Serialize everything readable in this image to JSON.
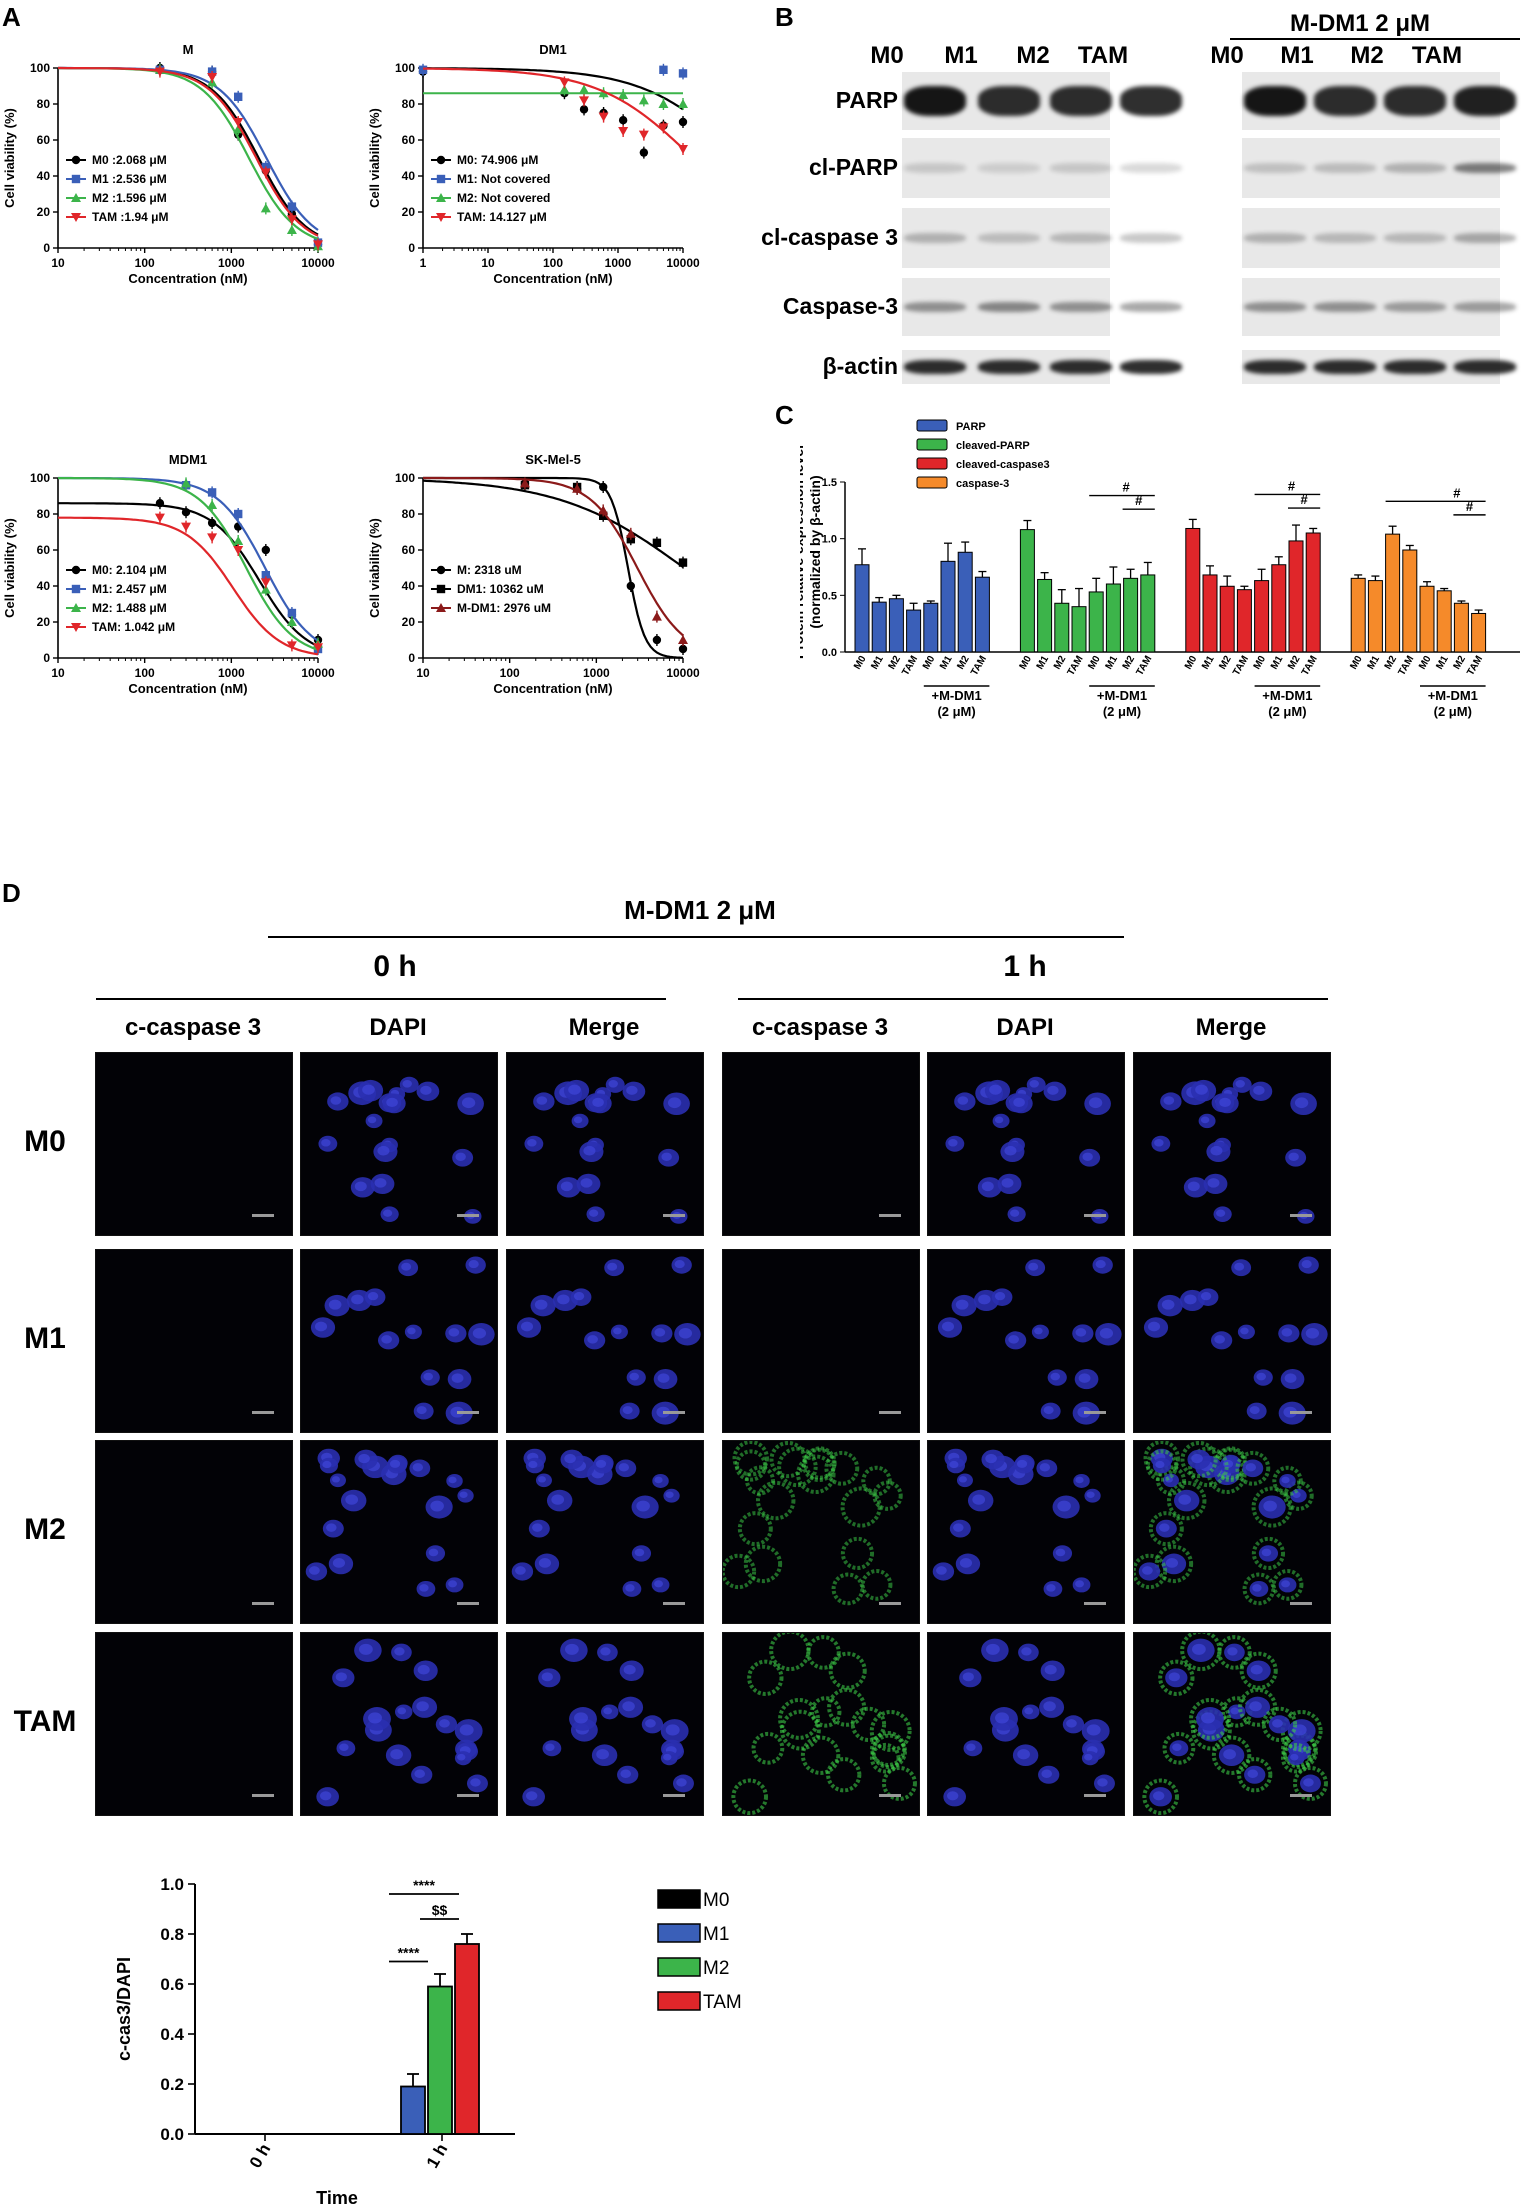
{
  "panel_labels": {
    "a": "A",
    "b": "B",
    "c": "C",
    "d": "D"
  },
  "chart_data": [
    {
      "id": "a1",
      "type": "line",
      "title": "M",
      "xlabel": "Concentration (nM)",
      "ylabel": "Cell viability (%)",
      "x_scale": "log",
      "xlim": [
        10,
        10000
      ],
      "ylim": [
        0,
        100
      ],
      "xticks": [
        "10",
        "100",
        "1000",
        "10000"
      ],
      "yticks": [
        "0",
        "20",
        "40",
        "60",
        "80",
        "100"
      ],
      "legend_position": "bottom-left",
      "series": [
        {
          "name": "M0 :2.068 μM",
          "color": "#000000",
          "marker": "circle",
          "ec50": 2068,
          "x": [
            150,
            600,
            1200,
            2500,
            5000,
            10000
          ],
          "y": [
            100,
            98,
            63,
            43,
            19,
            2
          ]
        },
        {
          "name": "M1 :2.536  μM",
          "color": "#3a5fb8",
          "marker": "square",
          "ec50": 2536,
          "x": [
            150,
            600,
            1200,
            2500,
            5000,
            10000
          ],
          "y": [
            99,
            98,
            84,
            45,
            23,
            3
          ]
        },
        {
          "name": "M2 :1.596  μM",
          "color": "#3cb44a",
          "marker": "triangle",
          "ec50": 1596,
          "x": [
            150,
            600,
            1200,
            2500,
            5000,
            10000
          ],
          "y": [
            99,
            92,
            66,
            22,
            10,
            1
          ]
        },
        {
          "name": "TAM  :1.94  μM",
          "color": "#e0262a",
          "marker": "triangle-down",
          "ec50": 1940,
          "x": [
            150,
            600,
            1200,
            2500,
            5000,
            10000
          ],
          "y": [
            98,
            95,
            70,
            42,
            16,
            2
          ]
        }
      ]
    },
    {
      "id": "a2",
      "type": "line",
      "title": "DM1",
      "xlabel": "Concentration (nM)",
      "ylabel": "Cell viability (%)",
      "x_scale": "log",
      "xlim": [
        1,
        10000
      ],
      "ylim": [
        0,
        100
      ],
      "xticks": [
        "1",
        "10",
        "100",
        "1000",
        "10000"
      ],
      "yticks": [
        "0",
        "20",
        "40",
        "60",
        "80",
        "100"
      ],
      "legend_position": "bottom-left",
      "series": [
        {
          "name": "M0: 74.906 μM",
          "color": "#000000",
          "marker": "circle",
          "ec50": 74906,
          "x": [
            1,
            150,
            300,
            600,
            1200,
            2500,
            5000,
            10000
          ],
          "y": [
            98,
            86,
            77,
            75,
            71,
            53,
            68,
            70
          ]
        },
        {
          "name": "M1: Not covered",
          "color": "#3a5fb8",
          "marker": "square",
          "ec50": null,
          "x": [
            1,
            5000,
            10000
          ],
          "y": [
            99,
            99,
            97
          ]
        },
        {
          "name": "M2: Not covered",
          "color": "#3cb44a",
          "marker": "triangle",
          "ec50": null,
          "x": [
            150,
            300,
            600,
            1200,
            2500,
            5000,
            10000
          ],
          "y": [
            88,
            88,
            86,
            85,
            82,
            80,
            80
          ]
        },
        {
          "name": "TAM: 14.127 μM",
          "color": "#e0262a",
          "marker": "triangle-down",
          "ec50": 14127,
          "x": [
            150,
            300,
            600,
            1200,
            2500,
            5000,
            10000
          ],
          "y": [
            92,
            82,
            73,
            65,
            63,
            67,
            55
          ]
        }
      ]
    },
    {
      "id": "a3",
      "type": "line",
      "title": "MDM1",
      "xlabel": "Concentration (nM)",
      "ylabel": "Cell viability (%)",
      "x_scale": "log",
      "xlim": [
        10,
        10000
      ],
      "ylim": [
        0,
        100
      ],
      "xticks": [
        "10",
        "100",
        "1000",
        "10000"
      ],
      "yticks": [
        "0",
        "20",
        "40",
        "60",
        "80",
        "100"
      ],
      "legend_position": "bottom-left",
      "series": [
        {
          "name": "M0: 2.104 μM",
          "color": "#000000",
          "marker": "circle",
          "ec50": 2104,
          "x": [
            150,
            300,
            600,
            1200,
            2500,
            5000,
            10000
          ],
          "y": [
            86,
            81,
            75,
            73,
            60,
            24,
            10
          ]
        },
        {
          "name": "M1: 2.457 μM",
          "color": "#3a5fb8",
          "marker": "square",
          "ec50": 2457,
          "x": [
            300,
            600,
            1200,
            2500,
            5000,
            10000
          ],
          "y": [
            96,
            92,
            80,
            46,
            25,
            5
          ]
        },
        {
          "name": "M2: 1.488 μM",
          "color": "#3cb44a",
          "marker": "triangle",
          "ec50": 1488,
          "x": [
            300,
            600,
            1200,
            2500,
            5000,
            10000
          ],
          "y": [
            97,
            85,
            65,
            38,
            20,
            8
          ]
        },
        {
          "name": "TAM: 1.042 μM",
          "color": "#e0262a",
          "marker": "triangle-down",
          "ec50": 1042,
          "x": [
            150,
            300,
            600,
            1200,
            2500,
            5000,
            10000
          ],
          "y": [
            78,
            73,
            67,
            60,
            42,
            7,
            6
          ]
        }
      ]
    },
    {
      "id": "a4",
      "type": "line",
      "title": "SK-Mel-5",
      "xlabel": "Concentration (nM)",
      "ylabel": "Cell viability (%)",
      "x_scale": "log",
      "xlim": [
        10,
        10000
      ],
      "ylim": [
        0,
        100
      ],
      "xticks": [
        "10",
        "100",
        "1000",
        "10000"
      ],
      "yticks": [
        "0",
        "20",
        "40",
        "60",
        "80",
        "100"
      ],
      "legend_position": "bottom-left",
      "series": [
        {
          "name": "M: 2318 uM",
          "color": "#000000",
          "marker": "circle",
          "ec50": 2318,
          "x": [
            150,
            600,
            1200,
            2500,
            5000,
            10000
          ],
          "y": [
            97,
            94,
            95,
            40,
            10,
            5
          ]
        },
        {
          "name": "DM1: 10362 uM",
          "color": "#000000",
          "marker": "square",
          "ec50": 10362,
          "x": [
            150,
            600,
            1200,
            2500,
            5000,
            10000
          ],
          "y": [
            96,
            95,
            79,
            66,
            64,
            53
          ]
        },
        {
          "name": "M-DM1: 2976 uM",
          "color": "#8b1a1a",
          "marker": "triangle",
          "ec50": 2976,
          "x": [
            150,
            600,
            1200,
            2500,
            5000,
            10000
          ],
          "y": [
            97,
            94,
            82,
            69,
            23,
            10
          ]
        }
      ]
    },
    {
      "id": "c",
      "type": "bar",
      "ylabel": "Protein relative expression level (normalized by β-actin)",
      "ylim": [
        0,
        1.5
      ],
      "yticks": [
        "0.0",
        "0.5",
        "1.0",
        "1.5"
      ],
      "categories": [
        "M0",
        "M1",
        "M2",
        "TAM",
        "M0",
        "M1",
        "M2",
        "TAM"
      ],
      "group_label": "+M-DM1 (2 μM)",
      "significance": "#",
      "legend_position": "top-left",
      "series": [
        {
          "name": "PARP",
          "color": "#3a5fb8",
          "values": [
            0.77,
            0.44,
            0.47,
            0.37,
            0.43,
            0.8,
            0.88,
            0.66
          ],
          "errors": [
            0.14,
            0.04,
            0.03,
            0.06,
            0.02,
            0.16,
            0.09,
            0.05
          ]
        },
        {
          "name": "cleaved-PARP",
          "color": "#3cb44a",
          "values": [
            1.08,
            0.64,
            0.43,
            0.4,
            0.53,
            0.6,
            0.65,
            0.68
          ],
          "errors": [
            0.08,
            0.06,
            0.12,
            0.16,
            0.12,
            0.15,
            0.08,
            0.11
          ]
        },
        {
          "name": "cleaved-caspase3",
          "color": "#e0262a",
          "values": [
            1.09,
            0.68,
            0.58,
            0.55,
            0.63,
            0.77,
            0.98,
            1.05
          ],
          "errors": [
            0.08,
            0.08,
            0.09,
            0.03,
            0.1,
            0.07,
            0.14,
            0.04
          ]
        },
        {
          "name": "caspase-3",
          "color": "#f58a2a",
          "values": [
            0.65,
            0.63,
            1.04,
            0.9,
            0.58,
            0.54,
            0.43,
            0.34
          ],
          "errors": [
            0.03,
            0.04,
            0.07,
            0.04,
            0.04,
            0.02,
            0.02,
            0.03
          ]
        }
      ]
    },
    {
      "id": "d",
      "type": "bar",
      "xlabel": "Time",
      "ylabel": "c-cas3/DAPI",
      "ylim": [
        0,
        1.0
      ],
      "yticks": [
        "0.0",
        "0.2",
        "0.4",
        "0.6",
        "0.8",
        "1.0"
      ],
      "categories": [
        "0 h",
        "1 h"
      ],
      "legend_position": "right",
      "series": [
        {
          "name": "M0",
          "color": "#000000",
          "values": [
            0,
            0
          ],
          "errors": [
            0,
            0
          ]
        },
        {
          "name": "M1",
          "color": "#3a5fb8",
          "values": [
            0,
            0.19
          ],
          "errors": [
            0,
            0.05
          ]
        },
        {
          "name": "M2",
          "color": "#3cb44a",
          "values": [
            0,
            0.59
          ],
          "errors": [
            0,
            0.05
          ]
        },
        {
          "name": "TAM",
          "color": "#e0262a",
          "values": [
            0,
            0.76
          ],
          "errors": [
            0,
            0.04
          ]
        }
      ],
      "annotations": [
        "****",
        "****",
        "$$"
      ]
    }
  ],
  "blot": {
    "group_header": "M-DM1 2 μM",
    "lanes": [
      "M0",
      "M1",
      "M2",
      "TAM",
      "M0",
      "M1",
      "M2",
      "TAM"
    ],
    "rows": [
      "PARP",
      "cl-PARP",
      "cl-caspase 3",
      "Caspase-3",
      "β-actin"
    ]
  },
  "micro": {
    "top_header": "M-DM1 2 μM",
    "time_headers": [
      "0 h",
      "1 h"
    ],
    "column_headers": [
      "c-caspase 3",
      "DAPI",
      "Merge",
      "c-caspase 3",
      "DAPI",
      "Merge"
    ],
    "row_labels": [
      "M0",
      "M1",
      "M2",
      "TAM"
    ]
  }
}
